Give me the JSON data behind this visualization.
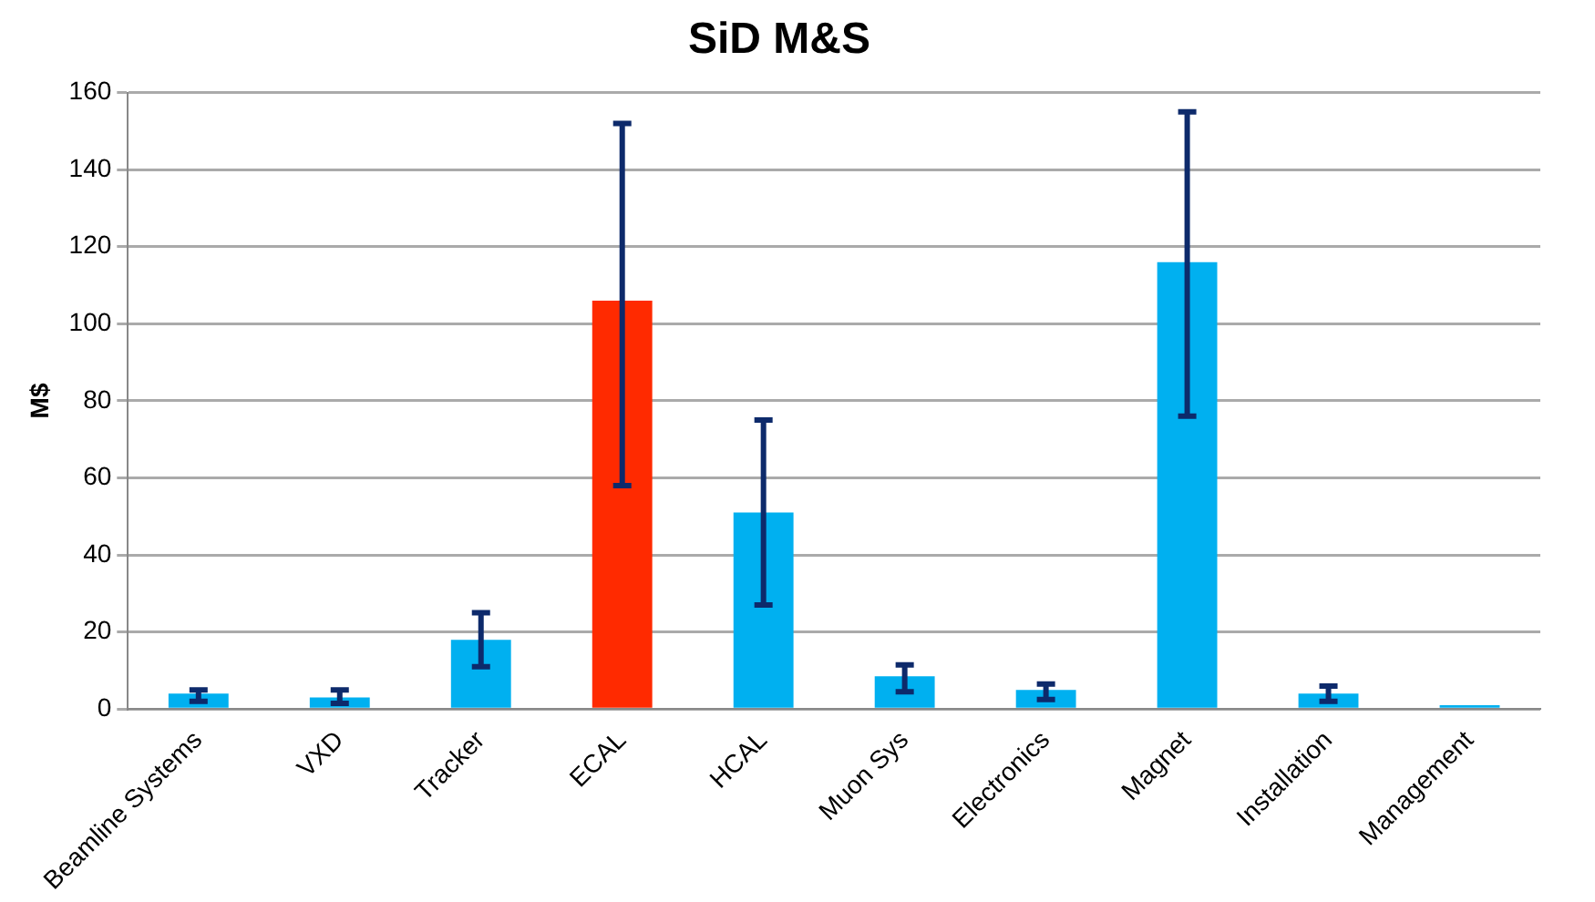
{
  "chart_data": {
    "type": "bar",
    "title": "SiD M&S",
    "ylabel": "M$",
    "categories": [
      "Beamline Systems",
      "VXD",
      "Tracker",
      "ECAL",
      "HCAL",
      "Muon Sys",
      "Electronics",
      "Magnet",
      "Installation",
      "Management"
    ],
    "values": [
      4,
      3,
      18,
      106,
      51,
      8.5,
      5,
      116,
      4,
      1
    ],
    "colors": [
      "#00b0f0",
      "#00b0f0",
      "#00b0f0",
      "#ff2a00",
      "#00b0f0",
      "#00b0f0",
      "#00b0f0",
      "#00b0f0",
      "#00b0f0",
      "#00b0f0"
    ],
    "errors": [
      [
        2,
        5
      ],
      [
        1.5,
        5
      ],
      [
        11,
        25
      ],
      [
        58,
        152
      ],
      [
        27,
        75
      ],
      [
        4.5,
        11.5
      ],
      [
        2.5,
        6.5
      ],
      [
        76,
        155
      ],
      [
        2,
        6
      ],
      null
    ],
    "ylim": [
      0,
      160
    ],
    "yticks": [
      0,
      20,
      40,
      60,
      80,
      100,
      120,
      140,
      160
    ],
    "grid": "y",
    "legend": false
  }
}
